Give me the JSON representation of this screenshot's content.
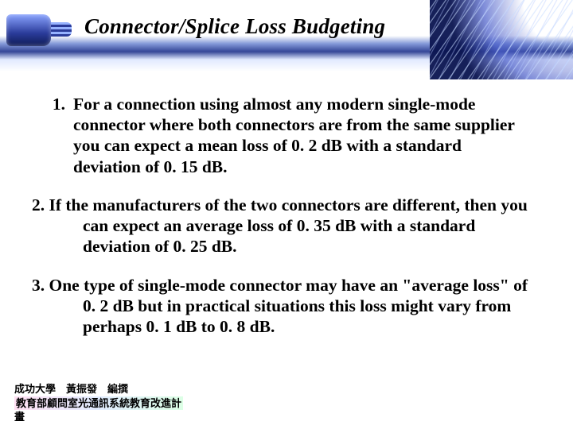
{
  "title": "Connector/Splice Loss Budgeting",
  "items": {
    "i1": {
      "num": "1.",
      "text": "For a connection using almost any modern single-mode connector where both connectors are from the same supplier you can expect a mean loss of 0. 2 dB with a standard deviation of 0. 15 dB."
    },
    "i2": {
      "text": "2. If the manufacturers of the two connectors are different, then you can expect an average loss of 0. 35 dB with a standard deviation of 0. 25 dB."
    },
    "i3": {
      "text": "3. One type of single-mode connector may have an \"average loss\" of 0. 2 dB but in practical situations this loss might vary from perhaps 0. 1 dB to 0. 8 dB."
    }
  },
  "footer": {
    "line1": "成功大學 黃振發 編撰",
    "line2": "教育部顧問室光通訊系統教育改進計",
    "line3": "畫"
  },
  "colors": {
    "text": "#000000",
    "background": "#ffffff",
    "band_mid": "#506ed0",
    "band_deep": "#1e328c"
  }
}
